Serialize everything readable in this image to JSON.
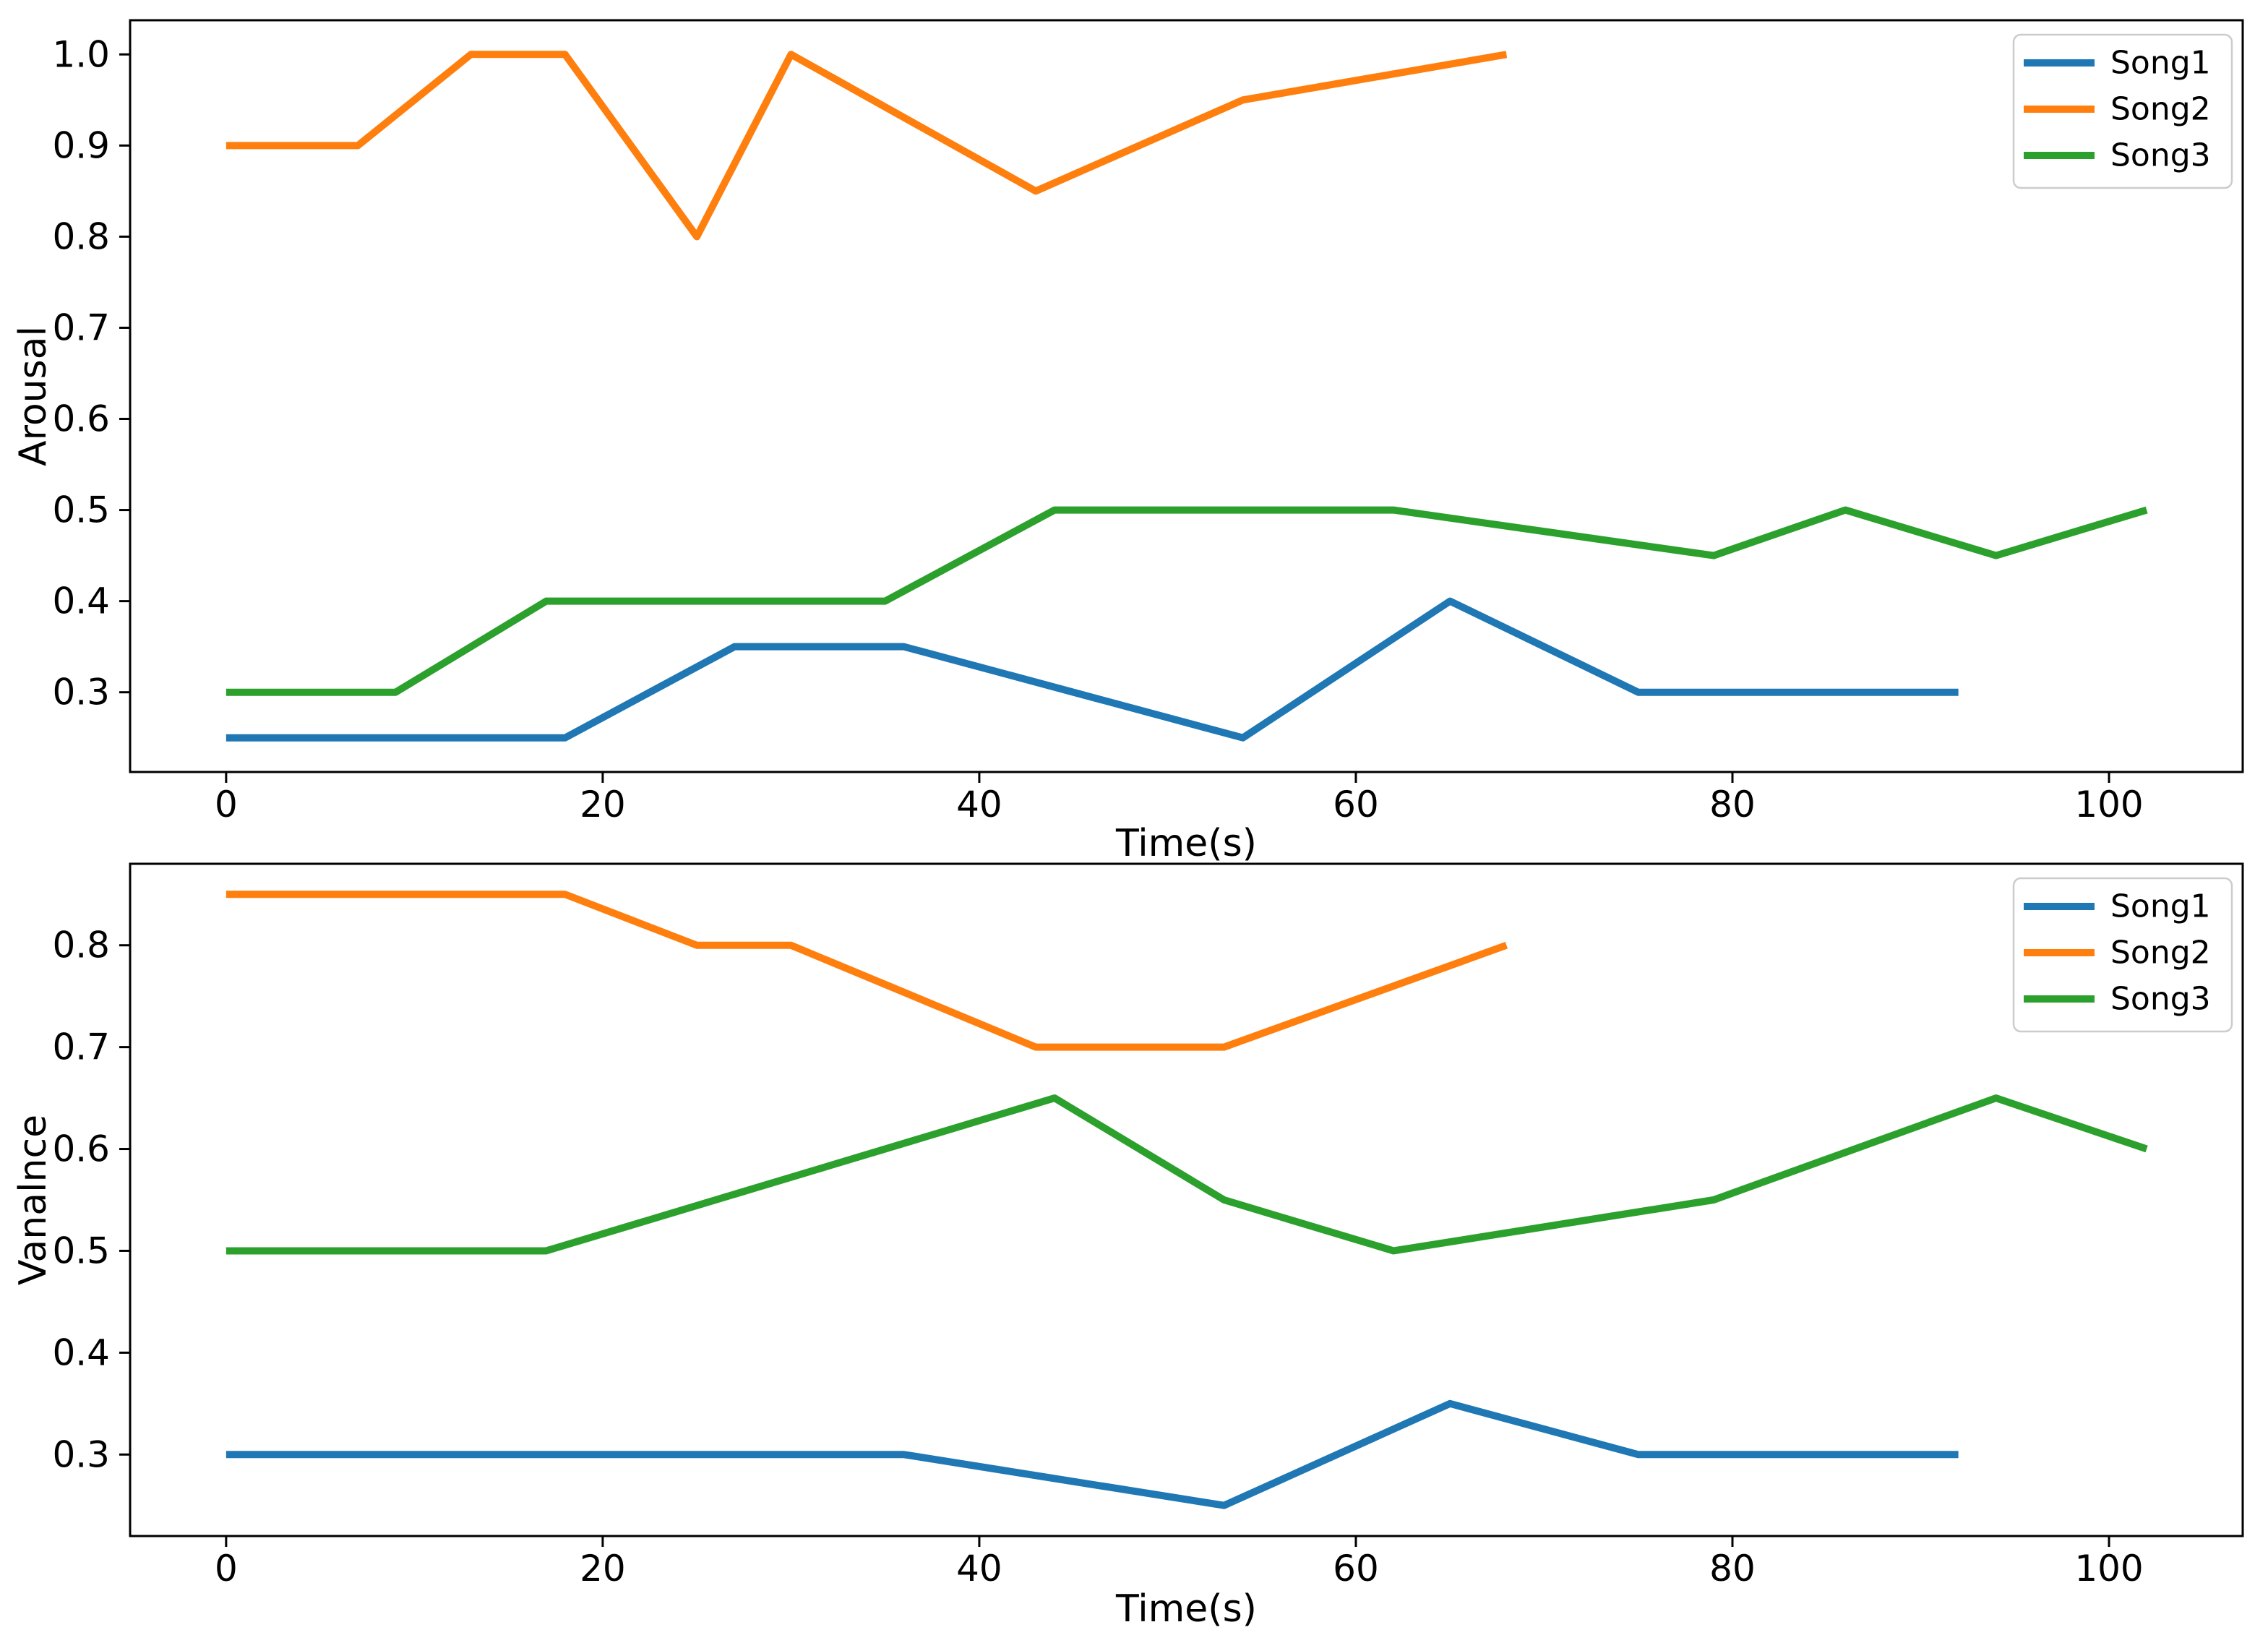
{
  "figure": {
    "background": "#ffffff",
    "spine_color": "#000000",
    "legend_border_color": "#cccccc",
    "legend_fill": "#ffffff"
  },
  "chart_data": [
    {
      "type": "line",
      "title": "",
      "xlabel": "Time(s)",
      "ylabel": "Arousal",
      "xlim": [
        -5.1,
        107.1
      ],
      "ylim": [
        0.2125,
        1.0375
      ],
      "xticks": [
        0,
        20,
        40,
        60,
        80,
        100
      ],
      "xtick_labels": [
        "0",
        "20",
        "40",
        "60",
        "80",
        "100"
      ],
      "yticks": [
        0.3,
        0.4,
        0.5,
        0.6,
        0.7,
        0.8,
        0.9,
        1.0
      ],
      "ytick_labels": [
        "0.3",
        "0.4",
        "0.5",
        "0.6",
        "0.7",
        "0.8",
        "0.9",
        "1.0"
      ],
      "grid": false,
      "legend": {
        "position": "upper right",
        "labels": [
          "Song1",
          "Song2",
          "Song3"
        ]
      },
      "series": [
        {
          "name": "Song1",
          "color": "#1f77b4",
          "x": [
            0,
            18,
            27,
            36,
            54,
            65,
            75,
            92
          ],
          "y": [
            0.25,
            0.25,
            0.35,
            0.35,
            0.25,
            0.4,
            0.3,
            0.3
          ]
        },
        {
          "name": "Song2",
          "color": "#ff7f0e",
          "x": [
            0,
            7,
            13,
            18,
            25,
            30,
            43,
            54,
            68
          ],
          "y": [
            0.9,
            0.9,
            1.0,
            1.0,
            0.8,
            1.0,
            0.85,
            0.95,
            1.0
          ]
        },
        {
          "name": "Song3",
          "color": "#2ca02c",
          "x": [
            0,
            9,
            17,
            35,
            44,
            62,
            79,
            86,
            94,
            102
          ],
          "y": [
            0.3,
            0.3,
            0.4,
            0.4,
            0.5,
            0.5,
            0.45,
            0.5,
            0.45,
            0.5
          ]
        }
      ]
    },
    {
      "type": "line",
      "title": "",
      "xlabel": "Time(s)",
      "ylabel": "Vanalnce",
      "xlim": [
        -5.1,
        107.1
      ],
      "ylim": [
        0.22,
        0.88
      ],
      "xticks": [
        0,
        20,
        40,
        60,
        80,
        100
      ],
      "xtick_labels": [
        "0",
        "20",
        "40",
        "60",
        "80",
        "100"
      ],
      "yticks": [
        0.3,
        0.4,
        0.5,
        0.6,
        0.7,
        0.8
      ],
      "ytick_labels": [
        "0.3",
        "0.4",
        "0.5",
        "0.6",
        "0.7",
        "0.8"
      ],
      "grid": false,
      "legend": {
        "position": "upper right",
        "labels": [
          "Song1",
          "Song2",
          "Song3"
        ]
      },
      "series": [
        {
          "name": "Song1",
          "color": "#1f77b4",
          "x": [
            0,
            36,
            53,
            65,
            75,
            92
          ],
          "y": [
            0.3,
            0.3,
            0.25,
            0.35,
            0.3,
            0.3
          ]
        },
        {
          "name": "Song2",
          "color": "#ff7f0e",
          "x": [
            0,
            18,
            25,
            30,
            43,
            53,
            68
          ],
          "y": [
            0.85,
            0.85,
            0.8,
            0.8,
            0.7,
            0.7,
            0.8
          ]
        },
        {
          "name": "Song3",
          "color": "#2ca02c",
          "x": [
            0,
            17,
            44,
            53,
            62,
            79,
            94,
            102
          ],
          "y": [
            0.5,
            0.5,
            0.65,
            0.55,
            0.5,
            0.55,
            0.65,
            0.6
          ]
        }
      ]
    }
  ]
}
